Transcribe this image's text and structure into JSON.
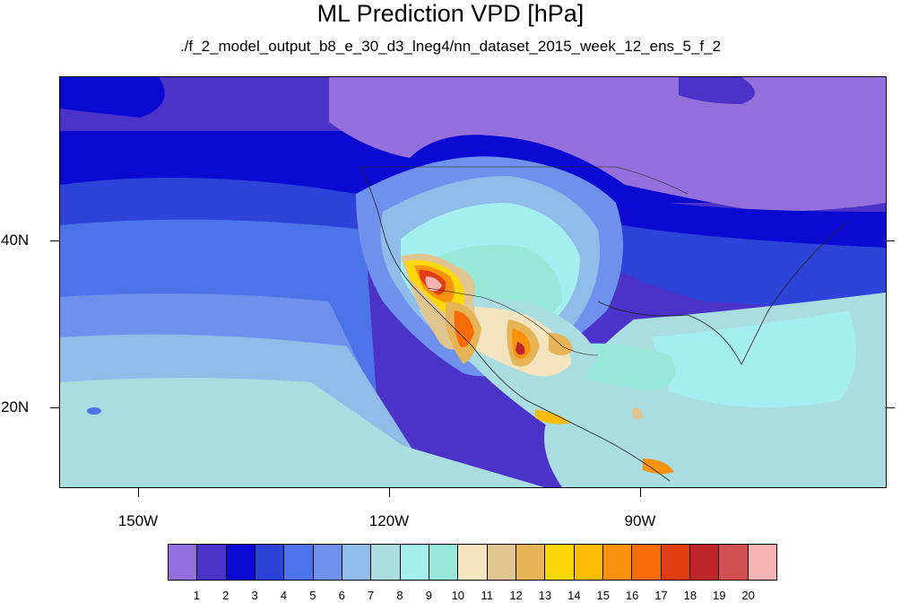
{
  "title": "ML Prediction VPD [hPa]",
  "subtitle": "./f_2_model_output_b8_e_30_d3_lneg4/nn_dataset_2015_week_12_ens_5_f_2",
  "map": {
    "lat_labels": [
      "40N",
      "20N"
    ],
    "lon_labels": [
      "150W",
      "120W",
      "90W"
    ]
  },
  "colorbar": {
    "labels": [
      "1",
      "2",
      "3",
      "4",
      "5",
      "6",
      "7",
      "8",
      "9",
      "10",
      "11",
      "12",
      "13",
      "14",
      "15",
      "16",
      "17",
      "18",
      "19",
      "20"
    ],
    "colors": [
      "#9370db",
      "#4b32c8",
      "#0a0ad2",
      "#2c44d9",
      "#4c73e8",
      "#6e91ee",
      "#8fbce8",
      "#a9dde0",
      "#a4eef0",
      "#98e8da",
      "#f3e4bd",
      "#e0c491",
      "#e6b357",
      "#fbd70b",
      "#fbbc05",
      "#f8920f",
      "#f76b08",
      "#e23e14",
      "#c0252a",
      "#d0504f",
      "#f8b3b3"
    ]
  }
}
